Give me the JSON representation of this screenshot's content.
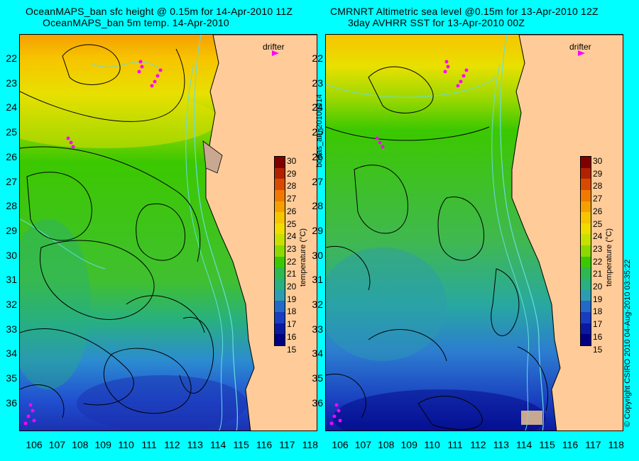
{
  "left": {
    "title1": "OceanMAPS_ban sfc height @ 0.15m for 14-Apr-2010 11Z",
    "title2": "OceanMAPS_ban 5m temp. 14-Apr-2010"
  },
  "right": {
    "title1": "CMRNRT Altimetric sea level  @0.15m  for 13-Apr-2010 12Z",
    "title2": "3day AVHRR SST for 13-Apr-2010 00Z"
  },
  "y_ticks": [
    "22",
    "23",
    "24",
    "25",
    "26",
    "27",
    "28",
    "29",
    "30",
    "31",
    "32",
    "33",
    "34",
    "35",
    "36"
  ],
  "x_ticks": [
    "106",
    "107",
    "108",
    "109",
    "110",
    "111",
    "112",
    "113",
    "114",
    "115",
    "116",
    "117",
    "118"
  ],
  "colorbar": {
    "ticks": [
      "30",
      "29",
      "28",
      "27",
      "26",
      "25",
      "24",
      "23",
      "22",
      "21",
      "20",
      "19",
      "18",
      "17",
      "16",
      "15"
    ],
    "label": "temperature (°C)",
    "colors": [
      "#800000",
      "#b22200",
      "#d84a00",
      "#f07a00",
      "#f5a000",
      "#f7c400",
      "#f2dc00",
      "#c8e000",
      "#8cd800",
      "#3cc800",
      "#2eb850",
      "#28b080",
      "#2c9cb0",
      "#2468c8",
      "#1a3cc0",
      "#0a1aa0",
      "#000080"
    ]
  },
  "drifter_label": "drifter",
  "side_label": "bodas_an_20100414",
  "copyright": "© Copyright CSIRO 2010      04-Aug-2010 03:35:22",
  "colors": {
    "background": "#00ffff",
    "land": "#ffcc99",
    "drifter": "#ff00ff",
    "contour": "#000000",
    "isobath": "#66dddd"
  }
}
